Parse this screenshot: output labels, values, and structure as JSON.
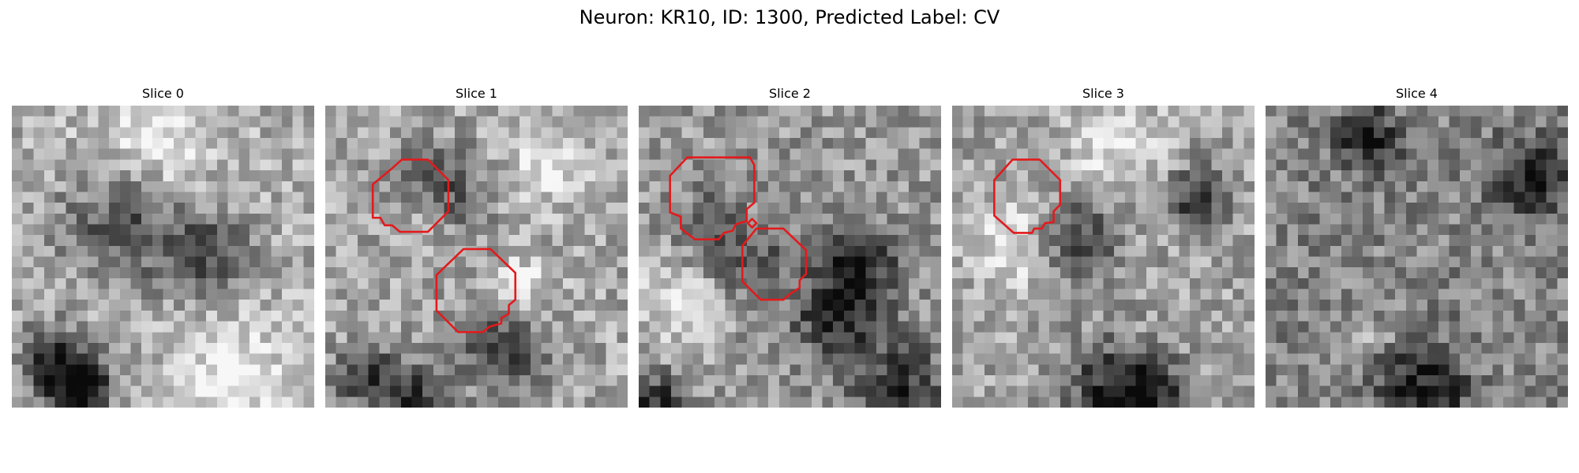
{
  "figure": {
    "title": "Neuron: KR10, ID: 1300, Predicted Label: CV"
  },
  "grid_size": 28,
  "contour_color": "#e31a1c",
  "panels": [
    {
      "title": "Slice 0",
      "seed": 11,
      "mean": 0.68,
      "darks": [
        [
          3.0,
          22.5,
          2.0
        ],
        [
          5.0,
          26.0,
          2.2
        ],
        [
          6.0,
          25.0,
          1.8
        ],
        [
          17.5,
          13.0,
          2.5
        ],
        [
          10.0,
          10.0,
          4.0
        ]
      ],
      "lights": [
        [
          12.0,
          4.0,
          4.0
        ],
        [
          20.0,
          25.0,
          3.5
        ]
      ]
    },
    {
      "title": "Slice 1",
      "seed": 27,
      "mean": 0.66,
      "darks": [
        [
          3.5,
          25.0,
          2.2
        ],
        [
          8.0,
          26.0,
          2.0
        ],
        [
          10.0,
          8.0,
          3.0
        ],
        [
          16.0,
          22.0,
          3.0
        ]
      ],
      "lights": [
        [
          9.0,
          10.0,
          2.0
        ],
        [
          17.5,
          16.5,
          2.0
        ],
        [
          20.0,
          5.0,
          2.5
        ]
      ]
    },
    {
      "title": "Slice 2",
      "seed": 43,
      "mean": 0.6,
      "darks": [
        [
          9.0,
          11.5,
          3.2
        ],
        [
          18.0,
          19.0,
          3.2
        ],
        [
          20.0,
          14.0,
          2.5
        ],
        [
          1.0,
          27.0,
          2.0
        ],
        [
          24.0,
          26.0,
          3.0
        ]
      ],
      "lights": [
        [
          10.0,
          10.0,
          2.0
        ],
        [
          3.0,
          18.0,
          3.0
        ]
      ]
    },
    {
      "title": "Slice 3",
      "seed": 59,
      "mean": 0.64,
      "darks": [
        [
          11.0,
          12.0,
          2.5
        ],
        [
          14.0,
          25.5,
          3.0
        ],
        [
          18.0,
          26.5,
          2.5
        ],
        [
          22.0,
          8.0,
          2.0
        ]
      ],
      "lights": [
        [
          15.0,
          3.0,
          3.0
        ],
        [
          5.0,
          12.0,
          3.0
        ]
      ]
    },
    {
      "title": "Slice 4",
      "seed": 71,
      "mean": 0.52,
      "darks": [
        [
          9.0,
          2.5,
          2.0
        ],
        [
          14.0,
          26.0,
          3.0
        ],
        [
          24.0,
          6.0,
          2.5
        ]
      ],
      "lights": [
        [
          9.5,
          21.0,
          1.0
        ]
      ]
    }
  ],
  "rois": [
    {
      "panel": 1,
      "points": [
        [
          7.1,
          5.0
        ],
        [
          9.5,
          5.0
        ],
        [
          11.4,
          6.9
        ],
        [
          11.4,
          9.8
        ],
        [
          9.5,
          11.7
        ],
        [
          6.9,
          11.7
        ],
        [
          6.2,
          11.1
        ],
        [
          5.5,
          11.1
        ],
        [
          5.1,
          10.4
        ],
        [
          4.4,
          10.4
        ],
        [
          4.4,
          7.3
        ],
        [
          6.2,
          5.8
        ]
      ]
    },
    {
      "panel": 1,
      "points": [
        [
          12.8,
          13.3
        ],
        [
          15.3,
          13.3
        ],
        [
          17.6,
          15.5
        ],
        [
          17.6,
          18.0
        ],
        [
          17.0,
          18.5
        ],
        [
          17.0,
          19.3
        ],
        [
          16.3,
          19.7
        ],
        [
          16.3,
          20.2
        ],
        [
          15.2,
          20.5
        ],
        [
          14.6,
          21.0
        ],
        [
          12.3,
          21.0
        ],
        [
          10.3,
          19.0
        ],
        [
          10.3,
          15.7
        ]
      ]
    },
    {
      "panel": 2,
      "points": [
        [
          4.5,
          4.8
        ],
        [
          10.3,
          4.8
        ],
        [
          10.7,
          5.5
        ],
        [
          10.7,
          9.0
        ],
        [
          10.0,
          9.6
        ],
        [
          10.0,
          10.7
        ],
        [
          9.0,
          11.0
        ],
        [
          8.7,
          11.6
        ],
        [
          7.9,
          11.8
        ],
        [
          7.4,
          12.4
        ],
        [
          5.2,
          12.4
        ],
        [
          3.9,
          11.4
        ],
        [
          3.9,
          10.3
        ],
        [
          2.9,
          9.9
        ],
        [
          2.9,
          6.5
        ]
      ]
    },
    {
      "panel": 2,
      "points": [
        [
          10.5,
          10.5
        ],
        [
          10.9,
          10.9
        ],
        [
          10.5,
          11.3
        ],
        [
          10.1,
          10.9
        ]
      ]
    },
    {
      "panel": 2,
      "points": [
        [
          10.9,
          11.4
        ],
        [
          13.4,
          11.4
        ],
        [
          15.5,
          13.4
        ],
        [
          15.5,
          15.6
        ],
        [
          14.9,
          16.2
        ],
        [
          14.9,
          16.9
        ],
        [
          14.1,
          17.4
        ],
        [
          13.4,
          18.0
        ],
        [
          11.3,
          18.0
        ],
        [
          9.6,
          16.3
        ],
        [
          9.6,
          13.0
        ]
      ]
    },
    {
      "panel": 3,
      "points": [
        [
          5.6,
          5.0
        ],
        [
          8.1,
          5.0
        ],
        [
          10.0,
          6.9
        ],
        [
          10.0,
          9.2
        ],
        [
          9.4,
          9.8
        ],
        [
          9.4,
          10.8
        ],
        [
          8.6,
          10.9
        ],
        [
          8.3,
          11.4
        ],
        [
          7.6,
          11.4
        ],
        [
          7.4,
          11.8
        ],
        [
          5.7,
          11.8
        ],
        [
          3.9,
          10.2
        ],
        [
          3.9,
          6.9
        ]
      ]
    }
  ]
}
